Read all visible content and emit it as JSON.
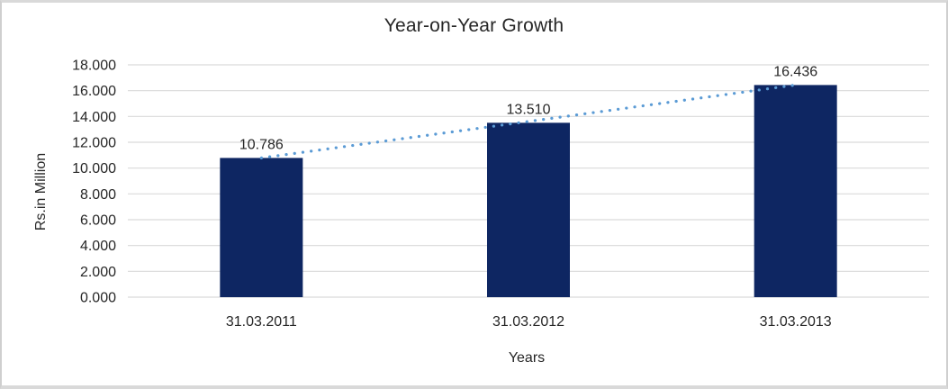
{
  "chart_data": {
    "type": "bar",
    "title": "Year-on-Year Growth",
    "xlabel": "Years",
    "ylabel": "Rs.in Million",
    "categories": [
      "31.03.2011",
      "31.03.2012",
      "31.03.2013"
    ],
    "series": [
      {
        "name": "Year-on-Year Growth",
        "values": [
          10786,
          13510,
          16436
        ],
        "value_labels": [
          "10.786",
          "13.510",
          "16.436"
        ]
      }
    ],
    "ylim": [
      0,
      18000
    ],
    "ytick_values": [
      0,
      2000,
      4000,
      6000,
      8000,
      10000,
      12000,
      14000,
      16000,
      18000
    ],
    "ytick_labels": [
      "0.000",
      "2.000",
      "4.000",
      "6.000",
      "8.000",
      "10.000",
      "12.000",
      "14.000",
      "16.000",
      "18.000"
    ],
    "grid": "horizontal-only",
    "legend": "none",
    "trendline": {
      "type": "linear",
      "style": "dotted",
      "color": "#5b9bd5"
    },
    "colors": {
      "bar": "#0e2662",
      "gridline": "#d9d9d9",
      "text": "#262626",
      "background": "#ffffff",
      "frame_border": "#d2d2d2"
    }
  }
}
